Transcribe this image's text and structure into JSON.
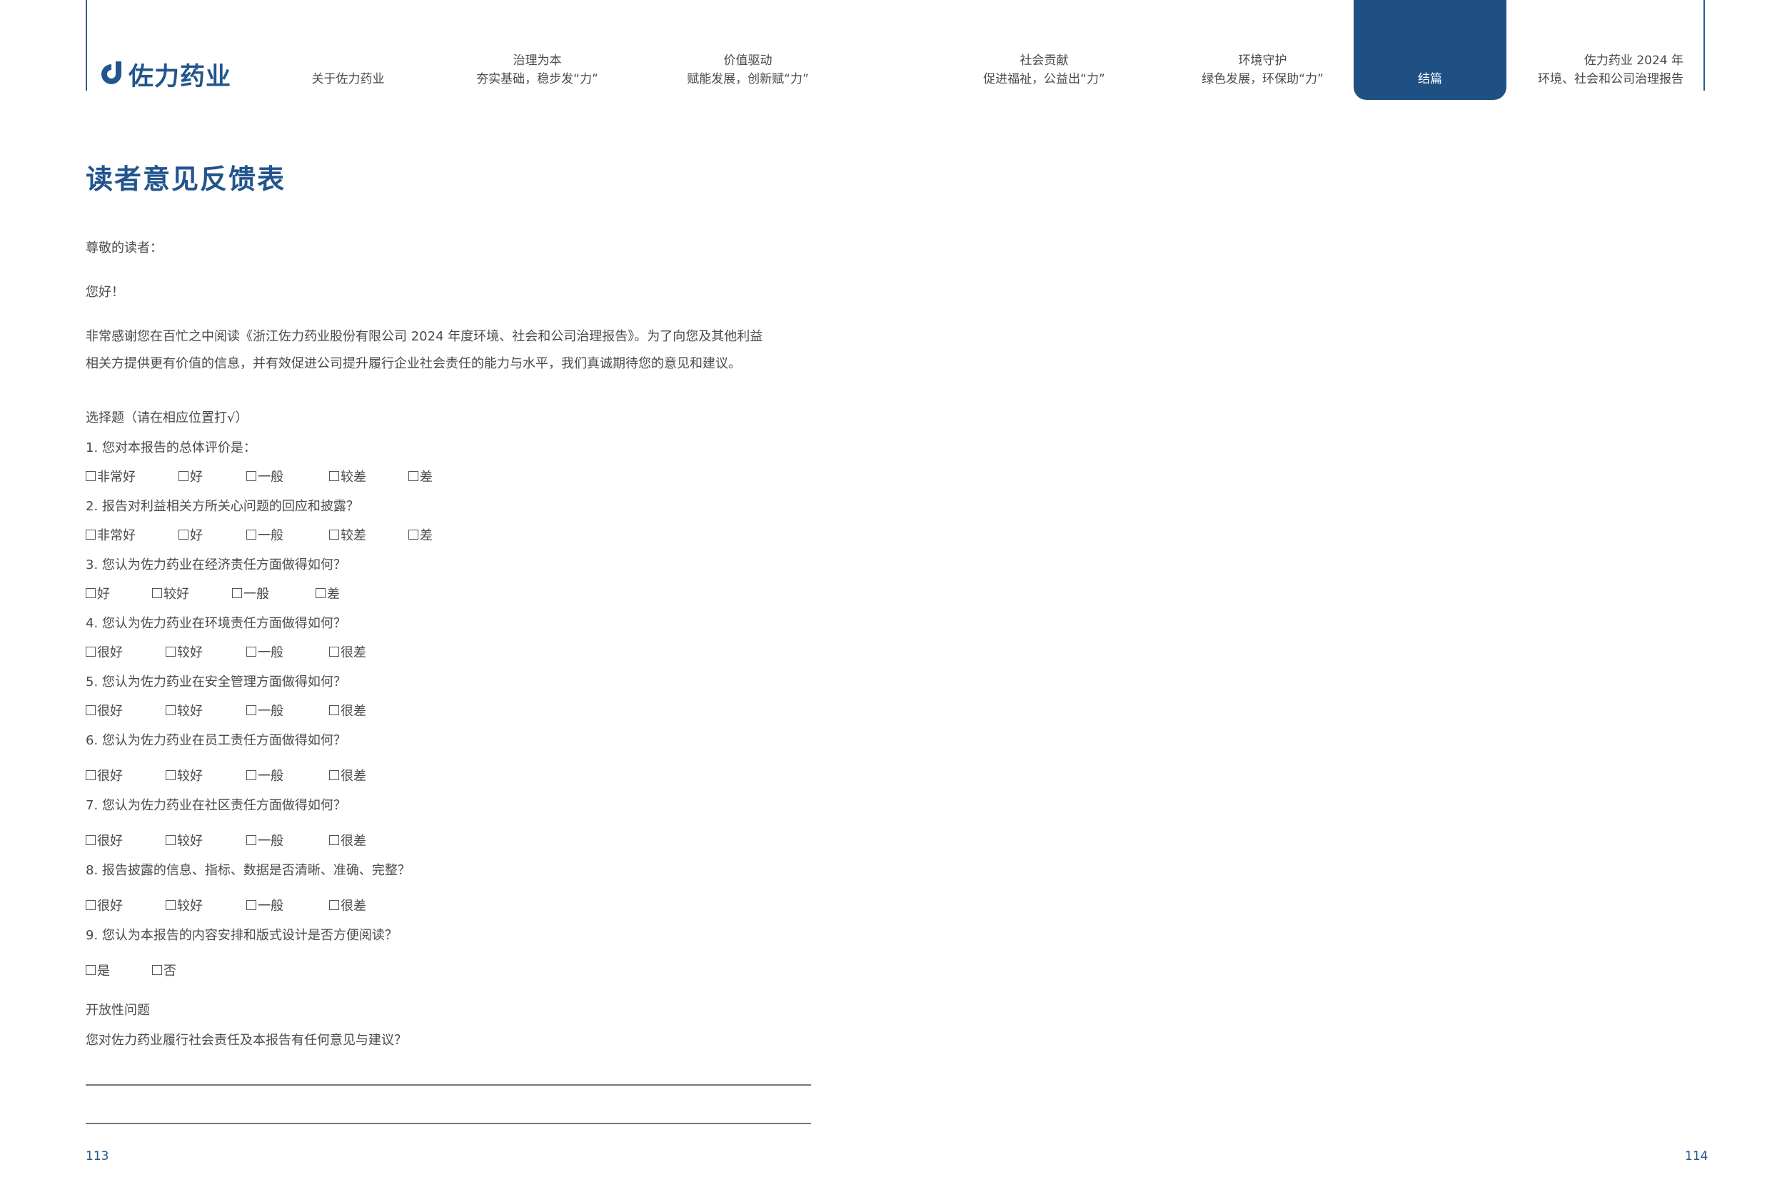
{
  "brand": {
    "logo_text": "佐力药业",
    "accent": "#1f5083",
    "line_color": "#2a5d93"
  },
  "nav": [
    {
      "line1": "",
      "line2": "关于佐力药业"
    },
    {
      "line1": "治理为本",
      "line2": "夯实基础，稳步发“力”"
    },
    {
      "line1": "价值驱动",
      "line2": "赋能发展，创新赋“力”"
    },
    {
      "line1": "社会贡献",
      "line2": "促进福祉，公益出“力”"
    },
    {
      "line1": "环境守护",
      "line2": "绿色发展，环保助“力”"
    },
    {
      "line1": "",
      "line2": "结篇"
    },
    {
      "line1": "佐力药业 2024 年",
      "line2": "环境、社会和公司治理报告"
    }
  ],
  "title": "读者意见反馈表",
  "greeting": "尊敬的读者：",
  "hello": "您好！",
  "intro_1": "非常感谢您在百忙之中阅读《浙江佐力药业股份有限公司 2024 年度环境、社会和公司治理报告》。为了向您及其他利益",
  "intro_2": "相关方提供更有价值的信息，并有效促进公司提升履行企业社会责任的能力与水平，我们真诚期待您的意见和建议。",
  "choice_header": "选择题（请在相应位置打√）",
  "questions": [
    {
      "q": "1. 您对本报告的总体评价是：",
      "options": [
        "非常好",
        "好",
        " 一般",
        "较差",
        "差"
      ]
    },
    {
      "q": "2. 报告对利益相关方所关心问题的回应和披露？",
      "options": [
        "非常好",
        "好",
        " 一般",
        "较差",
        "差"
      ]
    },
    {
      "q": "3. 您认为佐力药业在经济责任方面做得如何？",
      "options": [
        "好",
        "较好",
        " 一般",
        "差"
      ]
    },
    {
      "q": "4. 您认为佐力药业在环境责任方面做得如何？",
      "options": [
        "很好",
        "较好",
        " 一般",
        "很差"
      ]
    },
    {
      "q": "5. 您认为佐力药业在安全管理方面做得如何？",
      "options": [
        "很好",
        "较好",
        " 一般",
        "很差"
      ]
    },
    {
      "q": "6. 您认为佐力药业在员工责任方面做得如何？",
      "options": [
        "很好",
        "较好",
        " 一般",
        "很差"
      ]
    },
    {
      "q": "7. 您认为佐力药业在社区责任方面做得如何？",
      "options": [
        "很好",
        "较好",
        " 一般",
        "很差"
      ]
    },
    {
      "q": "8. 报告披露的信息、指标、数据是否清晰、准确、完整？",
      "options": [
        "很好",
        "较好",
        " 一般",
        "很差"
      ]
    },
    {
      "q": "9. 您认为本报告的内容安排和版式设计是否方便阅读？",
      "options": [
        "是",
        "否"
      ]
    }
  ],
  "open_header": "开放性问题",
  "open_question": "您对佐力药业履行社会责任及本报告有任何意见与建议？",
  "page_left": "113",
  "page_right": "114"
}
